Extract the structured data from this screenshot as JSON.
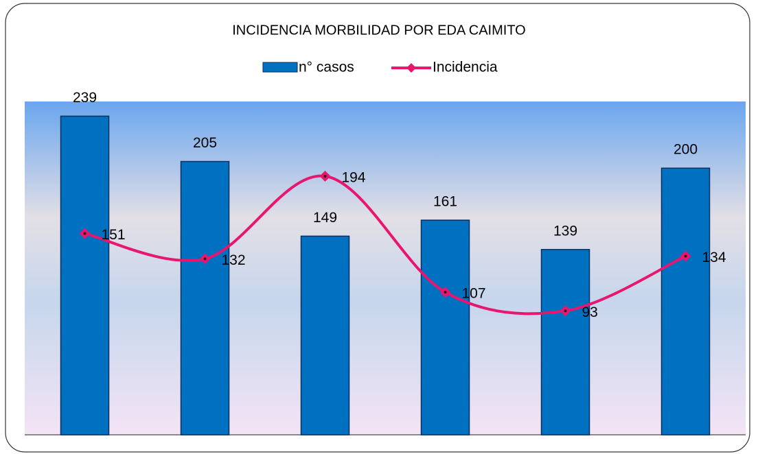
{
  "chart_data": {
    "type": "bar_line",
    "title": "INCIDENCIA MORBILIDAD POR EDA CAIMITO",
    "categories": [
      null,
      null,
      null,
      null,
      null,
      null
    ],
    "series": [
      {
        "name": "n° casos",
        "color": "#0070c0",
        "type": "bar",
        "values": [
          239,
          205,
          149,
          161,
          139,
          200
        ]
      },
      {
        "name": "Incidencia",
        "color": "#e8166e",
        "type": "line",
        "values": [
          151,
          132,
          194,
          107,
          93,
          134
        ]
      }
    ],
    "ylim": [
      0,
      250
    ],
    "legend": "top"
  }
}
